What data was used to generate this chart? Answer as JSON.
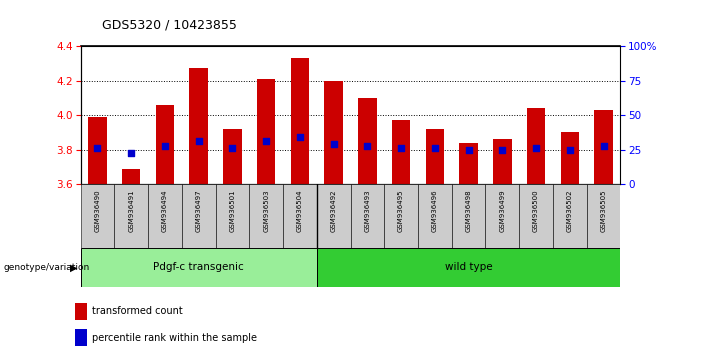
{
  "title": "GDS5320 / 10423855",
  "samples": [
    "GSM936490",
    "GSM936491",
    "GSM936494",
    "GSM936497",
    "GSM936501",
    "GSM936503",
    "GSM936504",
    "GSM936492",
    "GSM936493",
    "GSM936495",
    "GSM936496",
    "GSM936498",
    "GSM936499",
    "GSM936500",
    "GSM936502",
    "GSM936505"
  ],
  "bar_values": [
    3.99,
    3.69,
    4.06,
    4.27,
    3.92,
    4.21,
    4.33,
    4.2,
    4.1,
    3.97,
    3.92,
    3.84,
    3.86,
    4.04,
    3.9,
    4.03
  ],
  "blue_dot_values": [
    3.81,
    3.78,
    3.82,
    3.85,
    3.81,
    3.85,
    3.87,
    3.83,
    3.82,
    3.81,
    3.81,
    3.8,
    3.8,
    3.81,
    3.8,
    3.82
  ],
  "bar_color": "#cc0000",
  "dot_color": "#0000cc",
  "ymin": 3.6,
  "ymax": 4.4,
  "yticks_left": [
    3.6,
    3.8,
    4.0,
    4.2,
    4.4
  ],
  "yticks_right": [
    0,
    25,
    50,
    75,
    100
  ],
  "yright_labels": [
    "0",
    "25",
    "50",
    "75",
    "100%"
  ],
  "group1_label": "Pdgf-c transgenic",
  "group2_label": "wild type",
  "group1_count": 7,
  "group2_count": 9,
  "genotype_label": "genotype/variation",
  "legend_bar_label": "transformed count",
  "legend_dot_label": "percentile rank within the sample",
  "group1_color": "#99ee99",
  "group2_color": "#33cc33",
  "bar_width": 0.55,
  "tick_label_bg": "#cccccc"
}
